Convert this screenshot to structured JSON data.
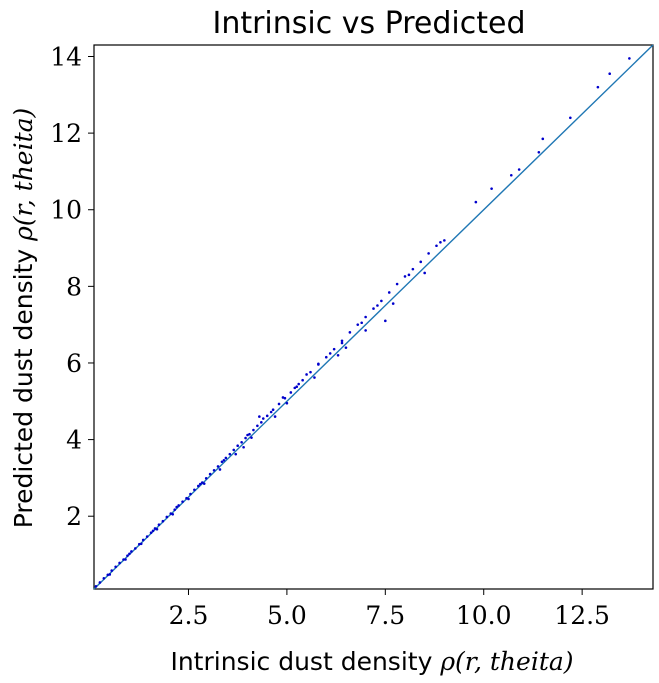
{
  "chart_data": {
    "type": "scatter",
    "title": "Intrinsic vs Predicted",
    "xlabel": {
      "text": "Intrinsic dust density ",
      "math": "ρ(r, theita)"
    },
    "ylabel": {
      "text": "Predicted dust density ",
      "math": "ρ(r, theita)"
    },
    "xlim": [
      0.1,
      14.3
    ],
    "ylim": [
      0.1,
      14.3
    ],
    "xticks": [
      2.5,
      5.0,
      7.5,
      10.0,
      12.5
    ],
    "xtick_labels": [
      "2.5",
      "5.0",
      "7.5",
      "10.0",
      "12.5"
    ],
    "yticks": [
      2,
      4,
      6,
      8,
      10,
      12,
      14
    ],
    "ytick_labels": [
      "2",
      "4",
      "6",
      "8",
      "10",
      "12",
      "14"
    ],
    "grid": false,
    "legend": "none",
    "reference_line": {
      "x": [
        0.1,
        14.3
      ],
      "y": [
        0.1,
        14.3
      ],
      "color": "#1f77b4"
    },
    "point_color": "#0000cc",
    "series": [
      {
        "x": [
          0.15,
          0.25,
          0.35,
          0.45,
          0.55,
          0.65,
          0.75,
          0.85,
          0.95,
          1.05,
          1.15,
          1.25,
          1.35,
          1.45,
          1.55,
          1.65,
          1.75,
          1.85,
          1.95,
          2.05,
          2.15,
          2.25,
          2.35,
          2.45,
          2.55,
          2.65,
          2.75,
          2.85,
          2.95,
          3.05,
          3.15,
          3.25,
          3.35,
          3.45,
          3.55,
          3.65,
          3.75,
          3.85,
          3.95,
          4.05,
          4.15,
          4.25,
          4.35,
          4.5,
          4.65,
          4.8,
          4.95,
          5.1,
          5.25,
          5.4,
          5.6,
          5.8,
          6.0,
          6.2,
          6.4,
          6.6,
          6.8,
          7.0,
          7.2,
          7.4,
          7.6,
          7.8,
          8.0,
          8.2,
          8.4,
          8.6,
          8.8,
          9.0,
          9.8,
          10.2,
          10.7,
          10.9,
          11.4,
          11.5,
          12.2,
          12.9,
          13.2,
          13.7,
          0.5,
          0.9,
          1.3,
          1.7,
          2.1,
          2.5,
          2.9,
          3.3,
          3.7,
          4.1,
          4.4,
          4.7,
          5.0,
          5.3,
          5.7,
          6.1,
          6.5,
          6.9,
          7.3,
          7.7,
          8.1,
          8.5,
          1.0,
          1.6,
          2.2,
          2.8,
          3.4,
          4.0,
          4.6,
          5.2,
          5.8,
          6.4,
          7.0,
          3.9,
          4.3,
          4.9,
          5.5,
          6.3,
          7.5,
          8.9
        ],
        "y": [
          0.17,
          0.27,
          0.38,
          0.47,
          0.58,
          0.68,
          0.78,
          0.87,
          0.97,
          1.08,
          1.16,
          1.27,
          1.38,
          1.47,
          1.57,
          1.68,
          1.78,
          1.87,
          1.98,
          2.07,
          2.17,
          2.28,
          2.38,
          2.47,
          2.58,
          2.69,
          2.79,
          2.88,
          2.99,
          3.1,
          3.2,
          3.3,
          3.42,
          3.52,
          3.62,
          3.73,
          3.84,
          3.93,
          4.04,
          4.14,
          4.25,
          4.36,
          4.45,
          4.62,
          4.78,
          4.93,
          5.08,
          5.23,
          5.38,
          5.55,
          5.76,
          5.96,
          6.15,
          6.36,
          6.58,
          6.8,
          7.0,
          7.2,
          7.42,
          7.62,
          7.84,
          8.06,
          8.26,
          8.45,
          8.64,
          8.86,
          9.06,
          9.2,
          10.2,
          10.55,
          10.9,
          11.05,
          11.5,
          11.85,
          12.4,
          13.2,
          13.55,
          13.95,
          0.48,
          0.87,
          1.28,
          1.66,
          2.05,
          2.45,
          2.85,
          3.22,
          3.62,
          4.05,
          4.55,
          4.6,
          4.95,
          5.45,
          5.62,
          6.25,
          6.4,
          7.05,
          7.5,
          7.55,
          8.3,
          8.35,
          1.02,
          1.62,
          2.24,
          2.84,
          3.46,
          4.12,
          4.72,
          5.35,
          5.98,
          6.52,
          6.85,
          3.8,
          4.6,
          5.1,
          5.7,
          6.2,
          7.1,
          9.15
        ]
      }
    ]
  }
}
